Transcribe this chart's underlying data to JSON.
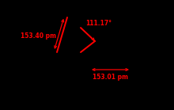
{
  "bg_color": "#000000",
  "line_color": "#ff0000",
  "text_color": "#ff0000",
  "bond_length_ch_label": "153.40 pm",
  "angle_label": "111.17°",
  "cc_length_label": "153.01 pm",
  "figsize": [
    2.2,
    1.39
  ],
  "dpi": 100,
  "lw": 1.4,
  "arrow_lw": 0.9,
  "font_size": 5.5
}
